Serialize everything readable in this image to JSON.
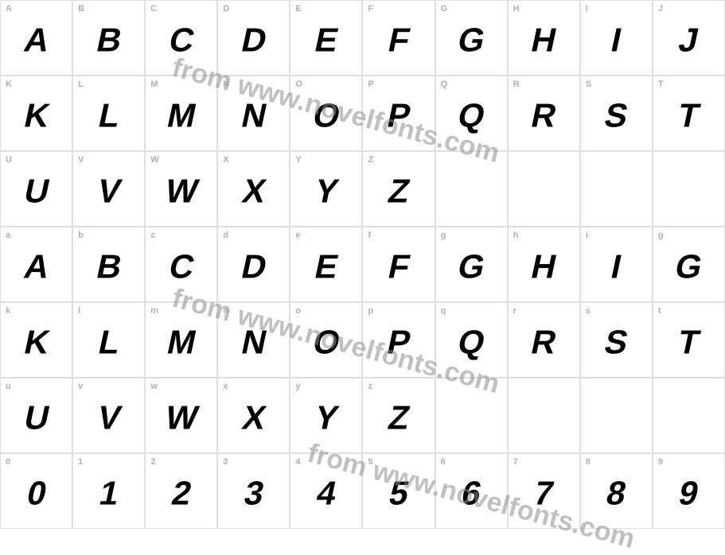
{
  "watermark_text": "from www.novelfonts.com",
  "watermark_color": "rgba(140,140,140,0.55)",
  "border_color": "#e0e0e0",
  "label_color": "#b0b0b0",
  "glyph_color": "#000000",
  "background_color": "#ffffff",
  "rows": [
    {
      "keys": [
        "A",
        "B",
        "C",
        "D",
        "E",
        "F",
        "G",
        "H",
        "I",
        "J"
      ],
      "glyphs": [
        "A",
        "B",
        "C",
        "D",
        "E",
        "F",
        "G",
        "H",
        "I",
        "J"
      ]
    },
    {
      "keys": [
        "K",
        "L",
        "M",
        "N",
        "O",
        "P",
        "Q",
        "R",
        "S",
        "T"
      ],
      "glyphs": [
        "K",
        "L",
        "M",
        "N",
        "O",
        "P",
        "Q",
        "R",
        "S",
        "T"
      ]
    },
    {
      "keys": [
        "U",
        "V",
        "W",
        "X",
        "Y",
        "Z",
        "",
        "",
        "",
        ""
      ],
      "glyphs": [
        "U",
        "V",
        "W",
        "X",
        "Y",
        "Z",
        "",
        "",
        "",
        ""
      ]
    },
    {
      "keys": [
        "a",
        "b",
        "c",
        "d",
        "e",
        "f",
        "g",
        "h",
        "i",
        "g"
      ],
      "glyphs": [
        "A",
        "B",
        "C",
        "D",
        "E",
        "F",
        "G",
        "H",
        "I",
        "G"
      ]
    },
    {
      "keys": [
        "k",
        "l",
        "m",
        "n",
        "o",
        "p",
        "q",
        "r",
        "s",
        "t"
      ],
      "glyphs": [
        "K",
        "L",
        "M",
        "N",
        "O",
        "P",
        "Q",
        "R",
        "S",
        "T"
      ]
    },
    {
      "keys": [
        "u",
        "v",
        "w",
        "x",
        "y",
        "z",
        "",
        "",
        "",
        ""
      ],
      "glyphs": [
        "U",
        "V",
        "W",
        "X",
        "Y",
        "Z",
        "",
        "",
        "",
        ""
      ]
    },
    {
      "keys": [
        "0",
        "1",
        "2",
        "3",
        "4",
        "5",
        "6",
        "7",
        "8",
        "9"
      ],
      "glyphs": [
        "0",
        "1",
        "2",
        "3",
        "4",
        "5",
        "6",
        "7",
        "8",
        "9"
      ]
    }
  ]
}
